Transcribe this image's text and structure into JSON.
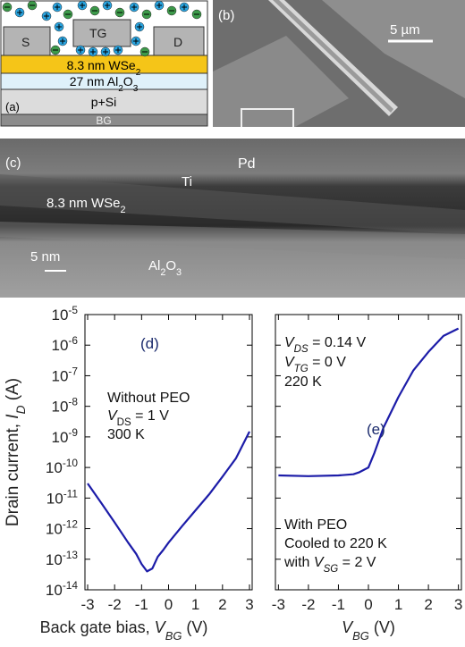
{
  "panels": {
    "a": {
      "label": "(a)",
      "source": "S",
      "gate": "TG",
      "drain": "D",
      "layer1": [
        {
          "text": "8.3 nm WSe"
        },
        {
          "text": "2",
          "sub": true
        }
      ],
      "layer2": [
        {
          "text": "27 nm Al"
        },
        {
          "text": "2",
          "sub": true
        },
        {
          "text": "O"
        },
        {
          "text": "3",
          "sub": true
        }
      ],
      "substrate": "p+Si",
      "backgate": "BG"
    },
    "b": {
      "label": "(b)",
      "scale": "5 µm"
    },
    "c": {
      "label": "(c)",
      "metal_top": "Pd",
      "metal_contact": "Ti",
      "layer": [
        {
          "text": "8.3 nm WSe"
        },
        {
          "text": "2",
          "sub": true
        }
      ],
      "scale": "5 nm",
      "oxide": [
        {
          "text": "Al"
        },
        {
          "text": "2",
          "sub": true
        },
        {
          "text": "O"
        },
        {
          "text": "3",
          "sub": true
        }
      ]
    }
  },
  "chart_data": [
    {
      "type": "line",
      "panel_label": "(d)",
      "ylabel": [
        {
          "text": "Drain current, "
        },
        {
          "text": "I",
          "italic": true
        },
        {
          "text": "D",
          "italic": true,
          "sub": true
        },
        {
          "text": " (A)"
        }
      ],
      "xlabel": [
        {
          "text": "Back gate bias, "
        },
        {
          "text": "V",
          "italic": true
        },
        {
          "text": "BG",
          "italic": true,
          "sub": true
        },
        {
          "text": " (V)"
        }
      ],
      "annotations": [
        [
          {
            "text": "Without PEO"
          }
        ],
        [
          {
            "text": "V",
            "italic": true
          },
          {
            "text": "DS",
            "sub": true
          },
          {
            "text": " = 1 V"
          }
        ],
        [
          {
            "text": "300 K"
          }
        ]
      ],
      "log_y": true,
      "ylim": [
        1e-14,
        1e-05
      ],
      "yticks": [
        {
          "value": 1e-14,
          "label": "10",
          "sup": "-14"
        },
        {
          "value": 1e-13,
          "label": "10",
          "sup": "-13"
        },
        {
          "value": 1e-12,
          "label": "10",
          "sup": "-12"
        },
        {
          "value": 1e-11,
          "label": "10",
          "sup": "-11"
        },
        {
          "value": 1e-10,
          "label": "10",
          "sup": "-10"
        },
        {
          "value": 1e-09,
          "label": "10",
          "sup": "-9"
        },
        {
          "value": 1e-08,
          "label": "10",
          "sup": "-8"
        },
        {
          "value": 1e-07,
          "label": "10",
          "sup": "-7"
        },
        {
          "value": 1e-06,
          "label": "10",
          "sup": "-6"
        },
        {
          "value": 1e-05,
          "label": "10",
          "sup": "-5"
        }
      ],
      "show_ytick_labels": true,
      "xlim": [
        -3.1,
        3.1
      ],
      "xticks": [
        -3,
        -2,
        -1,
        0,
        1,
        2,
        3
      ],
      "series": [
        {
          "color": "#1c1ca8",
          "x": [
            -3,
            -2.5,
            -2,
            -1.5,
            -1.2,
            -1,
            -0.8,
            -0.6,
            -0.4,
            -0.2,
            0,
            0.5,
            1,
            1.5,
            2,
            2.5,
            3
          ],
          "values": [
            3e-11,
            7e-12,
            1.6e-12,
            3.5e-13,
            1.5e-13,
            7e-14,
            4e-14,
            5e-14,
            1.2e-13,
            2e-13,
            3.5e-13,
            1.2e-12,
            4e-12,
            1.3e-11,
            5e-11,
            2e-10,
            1.5e-09
          ]
        }
      ]
    },
    {
      "type": "line",
      "panel_label": "(e)",
      "xlabel": [
        {
          "text": "V",
          "italic": true
        },
        {
          "text": "BG",
          "italic": true,
          "sub": true
        },
        {
          "text": " (V)"
        }
      ],
      "annotations": [
        [
          {
            "text": "V",
            "italic": true
          },
          {
            "text": "DS",
            "italic": true,
            "sub": true
          },
          {
            "text": " = 0.14 V"
          }
        ],
        [
          {
            "text": "V",
            "italic": true
          },
          {
            "text": "TG",
            "italic": true,
            "sub": true
          },
          {
            "text": " = 0 V"
          }
        ],
        [
          {
            "text": "220 K"
          }
        ],
        [
          {
            "text": "With PEO"
          }
        ],
        [
          {
            "text": "Cooled to 220 K"
          }
        ],
        [
          {
            "text": "with "
          },
          {
            "text": "V",
            "italic": true
          },
          {
            "text": "SG",
            "italic": true,
            "sub": true
          },
          {
            "text": " = 2 V"
          }
        ]
      ],
      "log_y": true,
      "ylim": [
        1e-14,
        1e-05
      ],
      "yticks": [
        1e-14,
        1e-13,
        1e-12,
        1e-11,
        1e-10,
        1e-09,
        1e-08,
        1e-07,
        1e-06,
        1e-05
      ],
      "show_ytick_labels": false,
      "xlim": [
        -3.1,
        3.1
      ],
      "xticks": [
        -3,
        -2,
        -1,
        0,
        1,
        2,
        3
      ],
      "series": [
        {
          "color": "#1c1ca8",
          "x": [
            -3,
            -2,
            -1,
            -0.5,
            -0.3,
            0,
            0.2,
            0.5,
            1,
            1.5,
            2,
            2.5,
            3
          ],
          "values": [
            5.5e-11,
            5.2e-11,
            5.5e-11,
            6e-11,
            7e-11,
            1e-10,
            3e-10,
            2e-09,
            2e-08,
            1.5e-07,
            6e-07,
            2e-06,
            3.5e-06
          ]
        }
      ]
    }
  ]
}
